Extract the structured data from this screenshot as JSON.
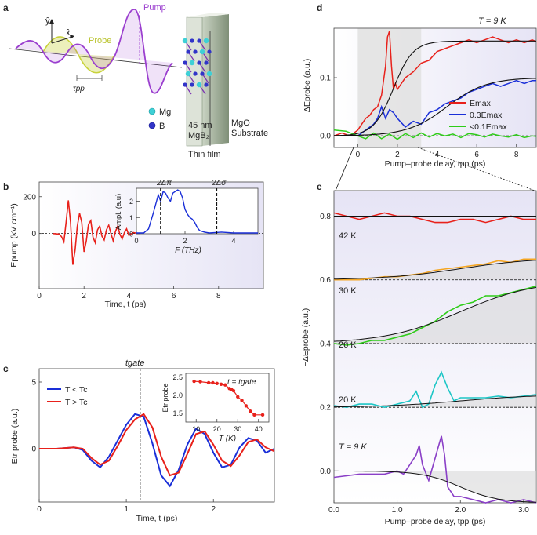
{
  "colors": {
    "red": "#e8211b",
    "blue": "#1a2fd8",
    "green": "#2ecc18",
    "orange": "#f5a623",
    "teal": "#1ec6c6",
    "purple": "#8a3fc7",
    "black": "#111111",
    "pump": "#9b3fcf",
    "probe": "#c8d23a",
    "shade": "#e6e6e6",
    "bg_grad": "#e9e8f6"
  },
  "panel_a": {
    "label": "a",
    "pump": "Pump",
    "probe": "Probe",
    "x_axis": "x̂",
    "y_axis": "ŷ",
    "delay": "τpp",
    "mg": "Mg",
    "b": "B",
    "film": "45 nm",
    "film2": "MgB₂",
    "substrate1": "MgO",
    "substrate2": "Substrate",
    "thin_film": "Thin film"
  },
  "panel_b": {
    "label": "b",
    "ylabel": "Epump (kV cm⁻¹)",
    "xlabel": "Time, t (ps)",
    "xticks": [
      "0",
      "2",
      "4",
      "6",
      "8"
    ],
    "yticks": [
      "0",
      "200"
    ],
    "inset": {
      "xlabel": "F (THz)",
      "ylabel": "Ampl. (a.u)",
      "xticks": [
        "0",
        "2",
        "4"
      ],
      "yticks": [
        "0",
        "1",
        "2"
      ],
      "gap_pi": "2Δπ",
      "gap_sigma": "2Δσ"
    }
  },
  "panel_c": {
    "label": "c",
    "ylabel": "Etr probe (a.u.)",
    "xlabel": "Time, t (ps)",
    "xticks": [
      "0",
      "1",
      "2"
    ],
    "yticks": [
      "0",
      "5"
    ],
    "tgate": "tgate",
    "legend": [
      "T < Tc",
      "T > Tc"
    ],
    "inset": {
      "title": "t = tgate",
      "xlabel": "T (K)",
      "ylabel": "Etr probe",
      "xticks": [
        "10",
        "20",
        "30",
        "40"
      ],
      "yticks": [
        "1.5",
        "2.0",
        "2.5"
      ]
    }
  },
  "panel_d": {
    "label": "d",
    "ylabel": "−ΔEprobe (a.u.)",
    "xlabel": "Pump–probe delay, tpp (ps)",
    "xticks": [
      "0",
      "2",
      "4",
      "6",
      "8"
    ],
    "yticks": [
      "0.0",
      "0.1"
    ],
    "temp": "T = 9 K",
    "legend": [
      "Emax",
      "0.3Emax",
      "<0.1Emax"
    ]
  },
  "panel_e": {
    "label": "e",
    "ylabel": "−ΔEprobe (a.u.)",
    "xlabel": "Pump–probe delay, tpp (ps)",
    "xticks": [
      "0.0",
      "1.0",
      "2.0",
      "3.0"
    ],
    "yticks": [
      "0.0",
      "0.2",
      "0.4",
      "0.6",
      "0.8"
    ],
    "temps": [
      "42 K",
      "30 K",
      "26 K",
      "20 K",
      "T = 9 K"
    ]
  },
  "chart_data": [
    {
      "panel": "b",
      "type": "line",
      "title": "",
      "xlabel": "Time, t (ps)",
      "ylabel": "Epump (kV cm⁻¹)",
      "xlim": [
        0,
        10
      ],
      "ylim": [
        -300,
        280
      ],
      "series": [
        {
          "name": "Epump",
          "x": [
            0.6,
            0.9,
            1.0,
            1.1,
            1.2,
            1.3,
            1.4,
            1.5,
            1.6,
            1.7,
            1.8,
            1.9,
            2.0,
            2.1,
            2.2,
            2.3,
            2.4,
            2.5,
            2.6,
            2.7,
            2.8,
            2.9,
            3.0,
            3.1,
            3.2,
            3.3,
            3.4,
            3.5,
            3.6,
            3.7,
            3.8,
            3.9,
            4.0,
            4.2,
            4.4
          ],
          "y": [
            0,
            -3,
            -18,
            -45,
            60,
            180,
            60,
            -170,
            -90,
            40,
            110,
            60,
            -100,
            -40,
            50,
            70,
            -20,
            -50,
            20,
            40,
            -15,
            -35,
            20,
            45,
            0,
            -40,
            10,
            40,
            -5,
            -30,
            5,
            25,
            -10,
            5,
            0
          ]
        }
      ],
      "inset": {
        "type": "line",
        "xlabel": "F (THz)",
        "ylabel": "Ampl. (a.u)",
        "xlim": [
          0,
          5
        ],
        "ylim": [
          0,
          2.8
        ],
        "x": [
          0,
          0.3,
          0.5,
          0.7,
          0.9,
          1.0,
          1.1,
          1.2,
          1.3,
          1.4,
          1.5,
          1.6,
          1.7,
          1.8,
          1.9,
          2.0,
          2.1,
          2.2,
          2.3,
          2.4,
          2.5,
          2.6,
          2.8,
          3.0,
          3.5,
          4.0,
          5.0
        ],
        "y": [
          0.05,
          0.05,
          0.3,
          1.3,
          2.4,
          2.0,
          2.6,
          2.5,
          2.2,
          2.0,
          2.5,
          2.6,
          2.7,
          2.6,
          2.2,
          1.5,
          1.2,
          1.0,
          0.9,
          0.7,
          0.4,
          0.2,
          0.1,
          0.05,
          0.1,
          0.05,
          0.05
        ],
        "gaps": [
          1.0,
          3.3
        ]
      }
    },
    {
      "panel": "c",
      "type": "line",
      "xlabel": "Time, t (ps)",
      "ylabel": "Etr probe (a.u.)",
      "xlim": [
        0,
        2.7
      ],
      "ylim": [
        -4,
        6
      ],
      "tgate": 1.16,
      "series": [
        {
          "name": "T < Tc",
          "x": [
            0,
            0.2,
            0.4,
            0.5,
            0.6,
            0.7,
            0.8,
            0.9,
            1.0,
            1.1,
            1.2,
            1.3,
            1.4,
            1.5,
            1.6,
            1.7,
            1.8,
            1.9,
            2.0,
            2.1,
            2.2,
            2.3,
            2.4,
            2.5,
            2.6,
            2.7
          ],
          "y": [
            0,
            0,
            0.1,
            -0.1,
            -0.9,
            -1.4,
            -0.6,
            0.6,
            1.8,
            2.6,
            2.4,
            0.4,
            -2.0,
            -2.8,
            -1.6,
            0.3,
            1.5,
            1.1,
            -0.3,
            -1.4,
            -1.2,
            0.1,
            0.8,
            0.6,
            -0.3,
            0.0
          ]
        },
        {
          "name": "T > Tc",
          "x": [
            0,
            0.2,
            0.4,
            0.5,
            0.6,
            0.7,
            0.8,
            0.9,
            1.0,
            1.1,
            1.2,
            1.3,
            1.4,
            1.5,
            1.6,
            1.7,
            1.8,
            1.9,
            2.0,
            2.1,
            2.2,
            2.3,
            2.4,
            2.5,
            2.6,
            2.7
          ],
          "y": [
            0,
            0,
            0.1,
            0.0,
            -0.7,
            -1.2,
            -0.9,
            0.2,
            1.4,
            2.2,
            2.6,
            1.6,
            -0.6,
            -2.0,
            -1.8,
            -0.4,
            1.1,
            1.3,
            0.3,
            -0.9,
            -1.3,
            -0.5,
            0.5,
            0.7,
            0.1,
            -0.2
          ]
        }
      ],
      "inset": {
        "type": "line",
        "title": "t = tgate",
        "xlabel": "T (K)",
        "ylabel": "Etr probe",
        "xlim": [
          5,
          45
        ],
        "ylim": [
          1.25,
          2.6
        ],
        "x": [
          9,
          12,
          16,
          18,
          20,
          22,
          24,
          26,
          27,
          28,
          30,
          32,
          34,
          36,
          38,
          42
        ],
        "y": [
          2.38,
          2.37,
          2.34,
          2.34,
          2.32,
          2.3,
          2.28,
          2.18,
          2.15,
          2.12,
          1.95,
          1.85,
          1.7,
          1.55,
          1.45,
          1.45
        ]
      }
    },
    {
      "panel": "d",
      "type": "line",
      "xlabel": "Pump–probe delay, tpp (ps)",
      "ylabel": "−ΔEprobe (a.u.)",
      "xlim": [
        -1.2,
        9
      ],
      "ylim": [
        -0.02,
        0.185
      ],
      "shaded": [
        0,
        3.2
      ],
      "series": [
        {
          "name": "Emax",
          "x": [
            -1.2,
            -0.8,
            -0.4,
            0,
            0.2,
            0.4,
            0.6,
            0.8,
            1.0,
            1.2,
            1.4,
            1.5,
            1.6,
            1.7,
            1.8,
            1.9,
            2.0,
            2.2,
            2.4,
            2.8,
            3.2,
            3.6,
            4.0,
            4.4,
            4.8,
            5.2,
            5.6,
            6.0,
            6.4,
            6.8,
            7.2,
            7.6,
            8.0,
            8.4,
            8.8,
            9.0
          ],
          "y": [
            0.0,
            0.005,
            0.0,
            0.01,
            0.02,
            0.03,
            0.035,
            0.045,
            0.05,
            0.07,
            0.12,
            0.17,
            0.18,
            0.12,
            0.08,
            0.09,
            0.08,
            0.09,
            0.1,
            0.11,
            0.125,
            0.13,
            0.145,
            0.15,
            0.155,
            0.16,
            0.165,
            0.16,
            0.165,
            0.17,
            0.165,
            0.16,
            0.165,
            0.16,
            0.165,
            0.162
          ]
        },
        {
          "name": "0.3Emax",
          "x": [
            -1.2,
            -0.6,
            0,
            0.4,
            0.8,
            1.0,
            1.2,
            1.4,
            1.6,
            1.8,
            2.0,
            2.4,
            2.8,
            3.2,
            3.6,
            4.0,
            4.4,
            4.8,
            5.2,
            5.6,
            6.0,
            6.4,
            6.8,
            7.2,
            7.6,
            8.0,
            8.4,
            8.8,
            9.0
          ],
          "y": [
            0.0,
            0.0,
            0.0,
            0.01,
            0.02,
            0.03,
            0.05,
            0.03,
            0.045,
            0.04,
            0.03,
            0.015,
            0.025,
            0.02,
            0.04,
            0.045,
            0.055,
            0.06,
            0.065,
            0.075,
            0.08,
            0.085,
            0.09,
            0.085,
            0.09,
            0.095,
            0.09,
            0.095,
            0.095
          ]
        },
        {
          "name": "<0.1Emax",
          "x": [
            -1.2,
            -0.6,
            0,
            0.4,
            0.8,
            1.2,
            1.6,
            2.0,
            2.4,
            2.8,
            3.2,
            3.6,
            4.0,
            4.4,
            4.8,
            5.2,
            5.6,
            6.0,
            6.4,
            6.8,
            7.2,
            7.6,
            8.0,
            8.4,
            8.8,
            9.0
          ],
          "y": [
            0.01,
            0.008,
            0.0,
            -0.005,
            0.005,
            -0.005,
            0.003,
            -0.006,
            0.004,
            -0.003,
            0.005,
            -0.002,
            0.004,
            0.0,
            0.003,
            -0.003,
            0.004,
            0.002,
            -0.002,
            0.003,
            0.0,
            -0.002,
            0.002,
            -0.003,
            0.0,
            -0.001
          ]
        }
      ],
      "fits": [
        {
          "for": "Emax",
          "plateau": 0.163,
          "center": 1.8,
          "width": 1.1
        },
        {
          "for": "0.3Emax",
          "plateau": 0.1,
          "center": 4.5,
          "width": 2.2
        }
      ]
    },
    {
      "panel": "e",
      "type": "line",
      "xlabel": "Pump–probe delay, tpp (ps)",
      "ylabel": "−ΔEprobe (a.u.)",
      "xlim": [
        0,
        3.2
      ],
      "ylim": [
        -0.1,
        0.88
      ],
      "series": [
        {
          "name": "42 K",
          "offset": 0.8,
          "x": [
            0,
            0.2,
            0.4,
            0.6,
            0.8,
            1.0,
            1.2,
            1.4,
            1.6,
            1.8,
            2.0,
            2.2,
            2.4,
            2.6,
            2.8,
            3.0,
            3.2
          ],
          "y": [
            0.81,
            0.8,
            0.79,
            0.8,
            0.81,
            0.8,
            0.8,
            0.79,
            0.78,
            0.78,
            0.79,
            0.79,
            0.78,
            0.79,
            0.8,
            0.79,
            0.79
          ]
        },
        {
          "name": "30 K",
          "offset": 0.6,
          "x": [
            0,
            0.2,
            0.4,
            0.6,
            0.8,
            1.0,
            1.2,
            1.4,
            1.6,
            1.8,
            2.0,
            2.2,
            2.4,
            2.6,
            2.8,
            3.0,
            3.2
          ],
          "y": [
            0.6,
            0.6,
            0.6,
            0.605,
            0.61,
            0.61,
            0.615,
            0.62,
            0.63,
            0.635,
            0.64,
            0.645,
            0.65,
            0.66,
            0.655,
            0.665,
            0.665
          ]
        },
        {
          "name": "26 K",
          "offset": 0.4,
          "x": [
            0,
            0.2,
            0.4,
            0.6,
            0.8,
            1.0,
            1.2,
            1.4,
            1.6,
            1.8,
            2.0,
            2.2,
            2.4,
            2.6,
            2.8,
            3.0,
            3.2
          ],
          "y": [
            0.4,
            0.395,
            0.4,
            0.41,
            0.41,
            0.42,
            0.43,
            0.45,
            0.47,
            0.5,
            0.52,
            0.53,
            0.55,
            0.55,
            0.56,
            0.57,
            0.58
          ]
        },
        {
          "name": "20 K",
          "offset": 0.2,
          "x": [
            0,
            0.2,
            0.4,
            0.6,
            0.8,
            1.0,
            1.2,
            1.3,
            1.4,
            1.5,
            1.6,
            1.7,
            1.8,
            1.9,
            2.0,
            2.2,
            2.4,
            2.6,
            2.8,
            3.0,
            3.2
          ],
          "y": [
            0.205,
            0.2,
            0.21,
            0.21,
            0.2,
            0.21,
            0.22,
            0.25,
            0.2,
            0.21,
            0.27,
            0.31,
            0.26,
            0.22,
            0.23,
            0.23,
            0.23,
            0.235,
            0.23,
            0.235,
            0.24
          ]
        },
        {
          "name": "T = 9 K",
          "offset": 0.0,
          "x": [
            0,
            0.2,
            0.4,
            0.6,
            0.8,
            1.0,
            1.1,
            1.2,
            1.3,
            1.35,
            1.4,
            1.5,
            1.6,
            1.7,
            1.75,
            1.8,
            1.9,
            2.0,
            2.2,
            2.4,
            2.6,
            2.8,
            3.0,
            3.2
          ],
          "y": [
            -0.02,
            -0.015,
            -0.01,
            -0.01,
            -0.01,
            0.0,
            -0.01,
            0.02,
            0.05,
            0.08,
            0.02,
            -0.03,
            0.04,
            0.11,
            0.05,
            -0.05,
            -0.08,
            -0.08,
            -0.09,
            -0.1,
            -0.09,
            -0.1,
            -0.09,
            -0.1
          ]
        }
      ],
      "fits": [
        {
          "for": "42 K",
          "base": 0.8,
          "amp": 0.0
        },
        {
          "for": "30 K",
          "base": 0.6,
          "amp": 0.07,
          "center": 2.0,
          "width": 0.6
        },
        {
          "for": "26 K",
          "base": 0.4,
          "amp": 0.2,
          "center": 2.0,
          "width": 0.6
        },
        {
          "for": "20 K",
          "base": 0.2,
          "amp": 0.04,
          "center": 2.0,
          "width": 0.6
        },
        {
          "for": "T = 9 K",
          "base": 0.0,
          "amp": -0.1,
          "center": 2.0,
          "width": 0.3
        }
      ]
    }
  ]
}
